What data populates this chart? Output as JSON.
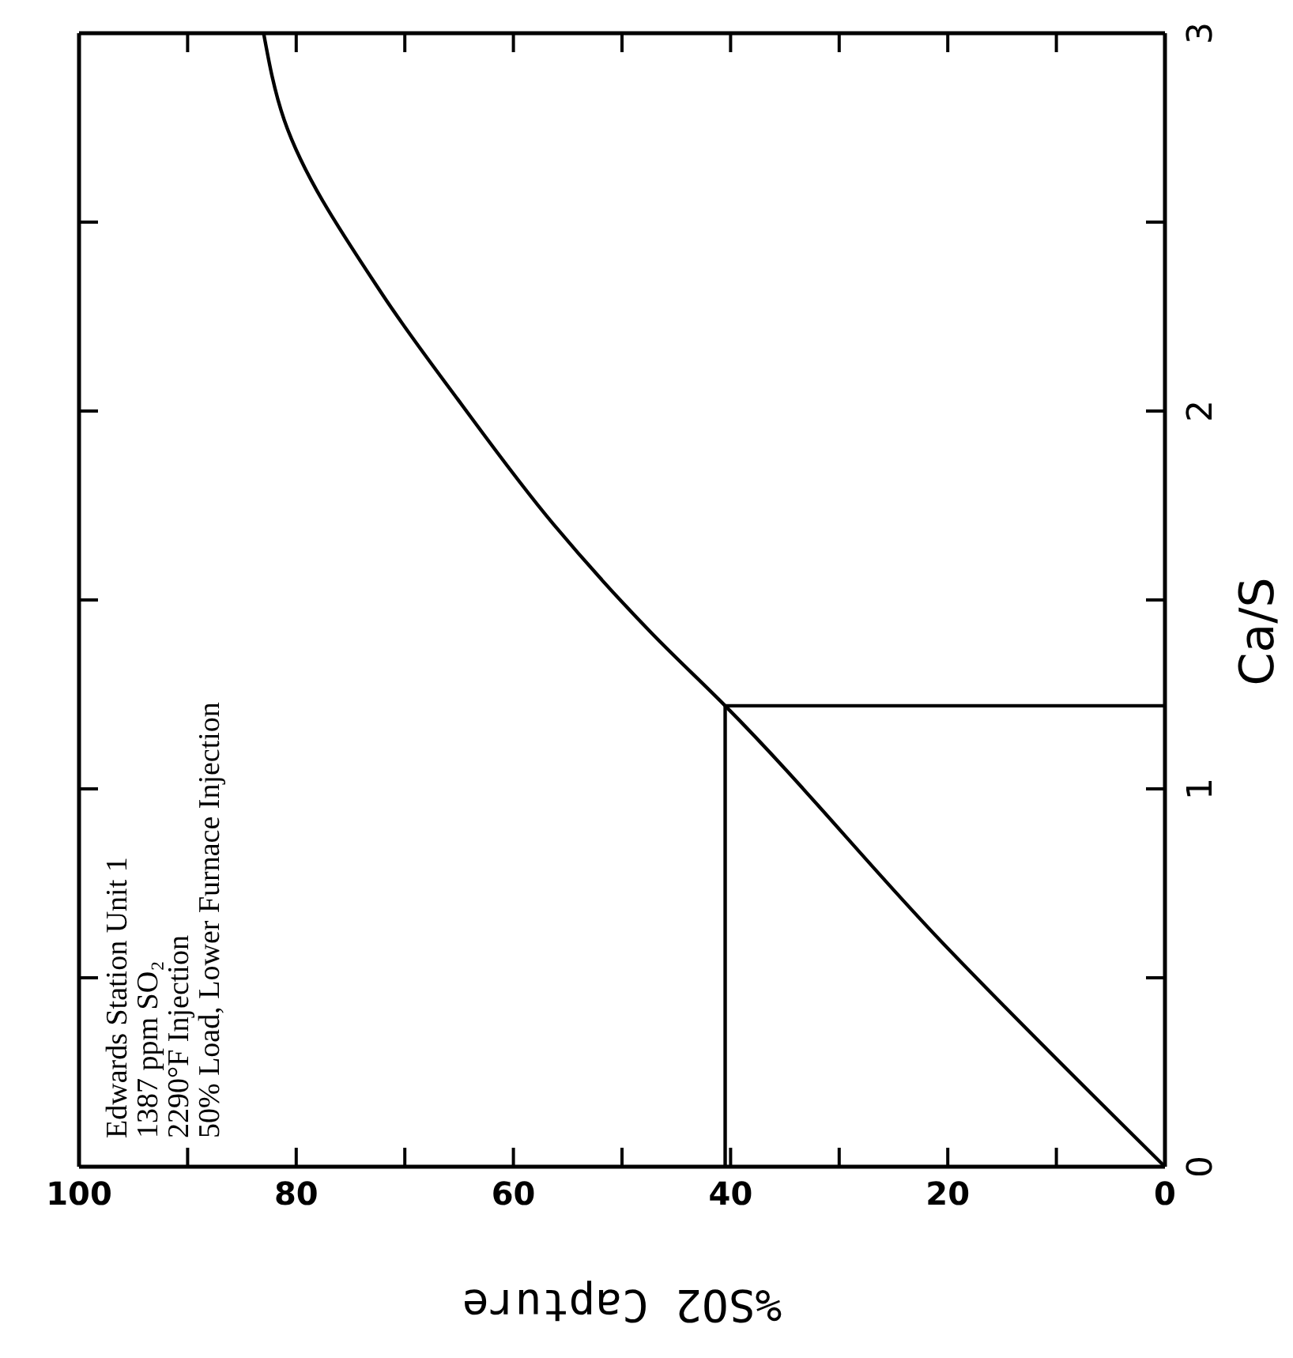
{
  "chart_data": {
    "type": "line",
    "xlabel": "%SO2 Capture",
    "ylabel": "Ca/S",
    "xlim": [
      100,
      0
    ],
    "xticks": [
      100,
      {
        "value": 90,
        "label": null
      },
      80,
      {
        "value": 70,
        "label": null
      },
      60,
      {
        "value": 50,
        "label": null
      },
      40,
      {
        "value": 30,
        "label": null
      },
      20,
      {
        "value": 10,
        "label": null
      },
      0
    ],
    "ylim": [
      0,
      3
    ],
    "yticks": [
      0,
      {
        "value": 0.5,
        "label": null
      },
      1,
      {
        "value": 1.5,
        "label": null
      },
      2,
      {
        "value": 2.5,
        "label": null
      },
      3
    ],
    "grid": false,
    "series": [
      {
        "color": "#000000",
        "x": [
          0,
          20.4,
          40.5,
          47.2,
          56.3,
          65.1,
          72.1,
          81.1,
          83
        ],
        "values": [
          0,
          0.59,
          1.22,
          1.41,
          1.7,
          2.03,
          2.31,
          2.77,
          3.0
        ]
      },
      {
        "color": "#000000",
        "x": [
          0,
          40.5,
          40.5
        ],
        "values": [
          1.22,
          1.22,
          0
        ]
      }
    ],
    "annotations": [
      "Edwards Station Unit 1",
      "1387 ppm SO₂",
      "2290°F Injection",
      "50% Load, Lower Furnace Injection"
    ]
  }
}
